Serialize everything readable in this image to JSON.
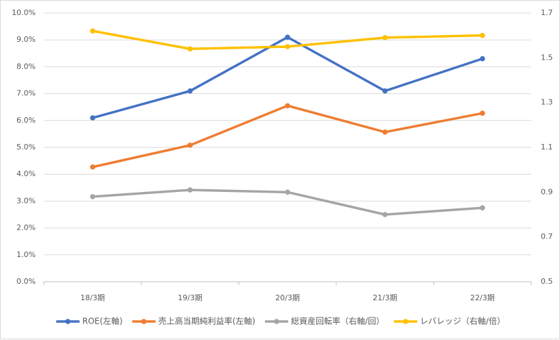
{
  "chart_data": {
    "type": "line",
    "categories": [
      "18/3期",
      "19/3期",
      "20/3期",
      "21/3期",
      "22/3期"
    ],
    "left_axis": {
      "min": 0,
      "max": 10,
      "step": 1,
      "tick_labels": [
        "0.0%",
        "1.0%",
        "2.0%",
        "3.0%",
        "4.0%",
        "5.0%",
        "6.0%",
        "7.0%",
        "8.0%",
        "9.0%",
        "10.0%"
      ]
    },
    "right_axis": {
      "min": 0.5,
      "max": 1.7,
      "step": 0.2,
      "tick_labels": [
        "0.5",
        "0.7",
        "0.9",
        "1.1",
        "1.3",
        "1.5",
        "1.7"
      ]
    },
    "grid": "horizontal",
    "legend_position": "bottom",
    "series": [
      {
        "name": "ROE(左軸)",
        "axis": "left",
        "color": "#4472c4",
        "values": [
          6.1,
          7.1,
          9.1,
          7.1,
          8.3
        ]
      },
      {
        "name": "売上高当期純利益率(左軸)",
        "axis": "left",
        "color": "#ed7d31",
        "values": [
          4.27,
          5.08,
          6.55,
          5.57,
          6.27
        ]
      },
      {
        "name": "総資産回転率（右軸/回）",
        "axis": "right",
        "color": "#a5a5a5",
        "values": [
          0.88,
          0.91,
          0.9,
          0.8,
          0.83
        ]
      },
      {
        "name": "レバレッジ（右軸/倍）",
        "axis": "right",
        "color": "#ffc000",
        "values": [
          1.62,
          1.54,
          1.55,
          1.59,
          1.6
        ]
      }
    ]
  }
}
